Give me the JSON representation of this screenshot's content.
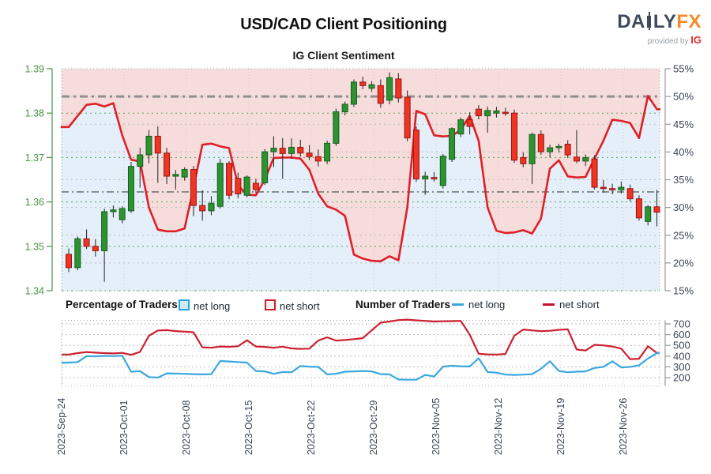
{
  "header": {
    "title": "USD/CAD Client Positioning",
    "subtitle": "IG Client Sentiment",
    "logo": {
      "brand_left": "DA",
      "brand_i": "I",
      "brand_mid": "LY",
      "brand_accent": "FX",
      "provided_by": "provided by",
      "ig": "IG"
    }
  },
  "legend": {
    "pct_group_label": "Percentage of Traders",
    "pct_net_long": "net long",
    "pct_net_short": "net short",
    "num_group_label": "Number of Traders",
    "num_net_long": "net long",
    "num_net_short": "net short"
  },
  "colors": {
    "candle_up_fill": "#2f9232",
    "candle_up_stroke": "#10611a",
    "candle_down_fill": "#ee3524",
    "candle_down_stroke": "#9c1310",
    "wick": "#333333",
    "net_short_pct_line": "#e01f26",
    "net_short_region_fill": "#f7dcdc",
    "net_long_region_fill": "#e4effa",
    "price_grid": "#3f9e3f",
    "pct_grid": "#b9bdb9",
    "vgrid": "#c8cfc8",
    "border": "#a5ada5",
    "ref_line_50": "#8f8f8f",
    "ref_line_low": "#5a675c",
    "price_axis_text": "#4a9347",
    "pct_axis_text": "#3a4556",
    "date_text": "#3a4556",
    "num_long_line": "#3ba7e0",
    "num_short_line": "#cc2030"
  },
  "chart_data": [
    {
      "type": "candlestick+line",
      "title": "IG Client Sentiment",
      "x_tick_labels": [
        "2023-Sep-24",
        "2023-Oct-01",
        "2023-Oct-08",
        "2023-Oct-15",
        "2023-Oct-22",
        "2023-Oct-29",
        "2023-Nov-05",
        "2023-Nov-12",
        "2023-Nov-19",
        "2023-Nov-26"
      ],
      "days_per_tick": 7,
      "price_axis": {
        "side": "left",
        "min": 1.34,
        "max": 1.39,
        "ticks": [
          "1.39",
          "1.38",
          "1.37",
          "1.36",
          "1.35",
          "1.34"
        ]
      },
      "pct_axis": {
        "side": "right",
        "min": 15,
        "max": 55,
        "ticks": [
          "55%",
          "50%",
          "45%",
          "40%",
          "35%",
          "30%",
          "25%",
          "20%",
          "15%"
        ]
      },
      "reference_lines": [
        {
          "pct": 50.0,
          "style": "dash-dot",
          "width": 3
        },
        {
          "pct": 32.8,
          "style": "dash-dot",
          "width": 1.4
        }
      ],
      "shading": {
        "above_net_short_line": "net short (pink)",
        "below_net_short_line": "net long (blue)"
      },
      "candles_ohlc": [
        [
          1.3482,
          1.3495,
          1.3442,
          1.3452
        ],
        [
          1.3452,
          1.3522,
          1.3446,
          1.3517
        ],
        [
          1.3517,
          1.3538,
          1.3494,
          1.35
        ],
        [
          1.35,
          1.3516,
          1.3477,
          1.349
        ],
        [
          1.349,
          1.3585,
          1.342,
          1.3578
        ],
        [
          1.3578,
          1.3592,
          1.3565,
          1.3582
        ],
        [
          1.356,
          1.359,
          1.3552,
          1.3585
        ],
        [
          1.358,
          1.369,
          1.3575,
          1.368
        ],
        [
          1.368,
          1.3722,
          1.3632,
          1.3706
        ],
        [
          1.3706,
          1.3762,
          1.3687,
          1.3748
        ],
        [
          1.3748,
          1.377,
          1.3643,
          1.371
        ],
        [
          1.371,
          1.3722,
          1.364,
          1.3658
        ],
        [
          1.3658,
          1.3672,
          1.3628,
          1.3662
        ],
        [
          1.3656,
          1.3678,
          1.3648,
          1.3673
        ],
        [
          1.3673,
          1.3681,
          1.3568,
          1.3592
        ],
        [
          1.3592,
          1.3626,
          1.3558,
          1.358
        ],
        [
          1.358,
          1.3613,
          1.357,
          1.3597
        ],
        [
          1.359,
          1.3697,
          1.3585,
          1.3687
        ],
        [
          1.3687,
          1.3692,
          1.3606,
          1.3615
        ],
        [
          1.3653,
          1.3666,
          1.3608,
          1.3618
        ],
        [
          1.3615,
          1.366,
          1.361,
          1.3656
        ],
        [
          1.3642,
          1.3652,
          1.362,
          1.3628
        ],
        [
          1.3643,
          1.3719,
          1.3638,
          1.3713
        ],
        [
          1.3713,
          1.3748,
          1.3678,
          1.3721
        ],
        [
          1.3721,
          1.3744,
          1.3652,
          1.3709
        ],
        [
          1.3709,
          1.3743,
          1.3697,
          1.3723
        ],
        [
          1.3723,
          1.374,
          1.3702,
          1.371
        ],
        [
          1.371,
          1.3728,
          1.3694,
          1.3702
        ],
        [
          1.3702,
          1.3718,
          1.368,
          1.3692
        ],
        [
          1.3692,
          1.3738,
          1.3685,
          1.3732
        ],
        [
          1.3732,
          1.381,
          1.3726,
          1.3803
        ],
        [
          1.3803,
          1.3826,
          1.3795,
          1.382
        ],
        [
          1.382,
          1.3876,
          1.3814,
          1.387
        ],
        [
          1.387,
          1.3882,
          1.3854,
          1.3862
        ],
        [
          1.3856,
          1.3872,
          1.3848,
          1.3864
        ],
        [
          1.3862,
          1.3876,
          1.3812,
          1.3822
        ],
        [
          1.3829,
          1.3892,
          1.382,
          1.388
        ],
        [
          1.3877,
          1.389,
          1.3824,
          1.3834
        ],
        [
          1.3836,
          1.3851,
          1.3736,
          1.3744
        ],
        [
          1.3762,
          1.377,
          1.3645,
          1.3652
        ],
        [
          1.3652,
          1.3668,
          1.3616,
          1.3658
        ],
        [
          1.3655,
          1.3667,
          1.3646,
          1.3653
        ],
        [
          1.3637,
          1.3708,
          1.363,
          1.3703
        ],
        [
          1.3696,
          1.3768,
          1.369,
          1.3765
        ],
        [
          1.3753,
          1.379,
          1.3746,
          1.3785
        ],
        [
          1.3785,
          1.3802,
          1.3752,
          1.377
        ],
        [
          1.3809,
          1.3818,
          1.3786,
          1.3794
        ],
        [
          1.3794,
          1.3815,
          1.3756,
          1.3806
        ],
        [
          1.38,
          1.3814,
          1.379,
          1.3805
        ],
        [
          1.3802,
          1.3812,
          1.3794,
          1.38
        ],
        [
          1.38,
          1.3808,
          1.3688,
          1.3694
        ],
        [
          1.37,
          1.3712,
          1.3678,
          1.3686
        ],
        [
          1.3686,
          1.3756,
          1.364,
          1.3752
        ],
        [
          1.3752,
          1.3761,
          1.3706,
          1.3713
        ],
        [
          1.3713,
          1.3729,
          1.37,
          1.3722
        ],
        [
          1.3722,
          1.3731,
          1.3711,
          1.3725
        ],
        [
          1.373,
          1.3739,
          1.3699,
          1.3706
        ],
        [
          1.3701,
          1.3762,
          1.3687,
          1.3692
        ],
        [
          1.3692,
          1.3707,
          1.3681,
          1.37
        ],
        [
          1.3697,
          1.3705,
          1.3628,
          1.3633
        ],
        [
          1.3633,
          1.3649,
          1.3621,
          1.363
        ],
        [
          1.363,
          1.3641,
          1.3617,
          1.3627
        ],
        [
          1.3627,
          1.3646,
          1.3619,
          1.3633
        ],
        [
          1.363,
          1.3639,
          1.3601,
          1.3607
        ],
        [
          1.3607,
          1.3615,
          1.3558,
          1.3564
        ],
        [
          1.3556,
          1.3593,
          1.3547,
          1.3589
        ],
        [
          1.3589,
          1.3627,
          1.3545,
          1.3577
        ]
      ],
      "net_short_pct": [
        44.5,
        46.5,
        48.5,
        48.7,
        48.2,
        48.8,
        43.0,
        38.6,
        38.3,
        30.0,
        26.0,
        25.7,
        25.7,
        26.2,
        33.5,
        41.3,
        41.5,
        41.0,
        40.7,
        34.0,
        32.3,
        32.2,
        35.0,
        38.9,
        39.0,
        39.0,
        38.8,
        36.8,
        32.5,
        30.2,
        29.6,
        28.5,
        21.5,
        20.8,
        20.4,
        20.3,
        21.2,
        20.5,
        30.0,
        47.4,
        46.8,
        43.0,
        42.8,
        42.9,
        44.0,
        46.5,
        42.0,
        30.0,
        25.8,
        25.4,
        25.5,
        25.9,
        25.3,
        28.0,
        37.0,
        38.5,
        35.6,
        35.4,
        35.5,
        38.8,
        42.0,
        45.8,
        45.6,
        45.2,
        42.5,
        50.1,
        47.7
      ]
    },
    {
      "type": "line",
      "title": "Number of Traders",
      "y_axis": {
        "side": "right",
        "ticks": [
          "700",
          "600",
          "500",
          "400",
          "300",
          "200"
        ],
        "tick_values": [
          700,
          600,
          500,
          400,
          300,
          200
        ]
      },
      "series": [
        {
          "name": "net long",
          "values": [
            340,
            345,
            400,
            398,
            402,
            400,
            405,
            255,
            260,
            205,
            200,
            240,
            238,
            235,
            232,
            230,
            232,
            355,
            350,
            345,
            340,
            262,
            258,
            235,
            252,
            250,
            308,
            302,
            300,
            230,
            235,
            255,
            258,
            262,
            258,
            232,
            230,
            182,
            180,
            180,
            225,
            210,
            302,
            310,
            306,
            304,
            380,
            252,
            246,
            228,
            225,
            228,
            232,
            282,
            352,
            262,
            250,
            255,
            258,
            290,
            300,
            352,
            295,
            300,
            315,
            378,
            428
          ]
        },
        {
          "name": "net short",
          "values": [
            415,
            428,
            438,
            432,
            428,
            425,
            430,
            412,
            440,
            590,
            638,
            642,
            633,
            628,
            622,
            482,
            478,
            490,
            487,
            492,
            548,
            490,
            486,
            478,
            488,
            472,
            468,
            470,
            545,
            575,
            545,
            550,
            558,
            568,
            640,
            712,
            722,
            735,
            740,
            733,
            728,
            722,
            724,
            726,
            728,
            600,
            422,
            416,
            415,
            420,
            590,
            648,
            640,
            632,
            636,
            645,
            650,
            462,
            452,
            505,
            500,
            490,
            470,
            372,
            376,
            492,
            430
          ]
        }
      ]
    }
  ]
}
